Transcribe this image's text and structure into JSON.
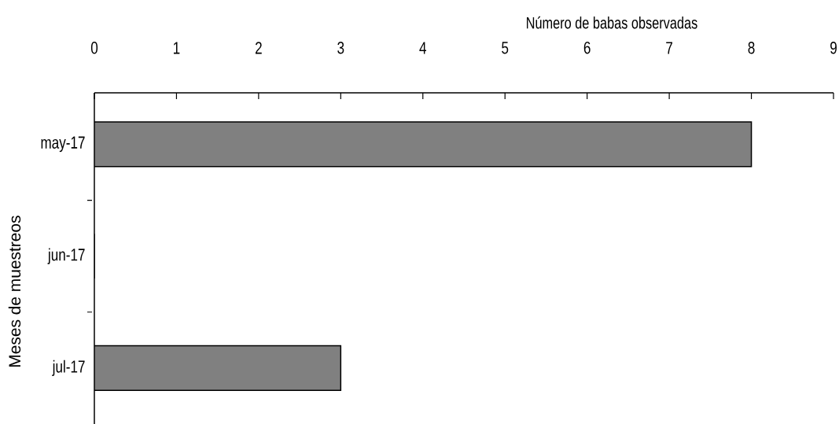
{
  "chart_data": {
    "type": "bar",
    "orientation": "horizontal",
    "xlabel": "Número de babas observadas",
    "ylabel": "Meses de muestreos",
    "categories": [
      "may-17",
      "jun-17",
      "jul-17"
    ],
    "values": [
      8,
      0,
      3
    ],
    "color": "#808080",
    "xlim": [
      0,
      9
    ],
    "xticks": [
      0,
      1,
      2,
      3,
      4,
      5,
      6,
      7,
      8,
      9
    ]
  }
}
